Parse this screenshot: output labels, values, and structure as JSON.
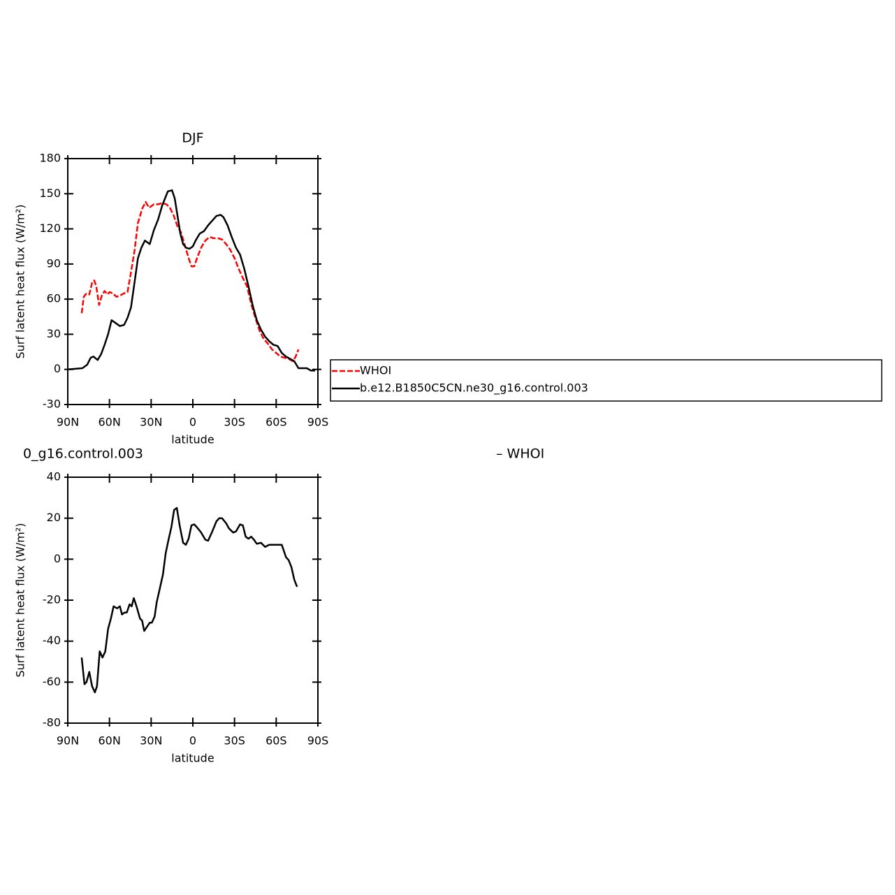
{
  "chart_data": [
    {
      "type": "line",
      "title": "DJF",
      "x_label": "latitude",
      "y_label": "Surf latent heat flux (W/m²)",
      "xlim": [
        90,
        -90
      ],
      "ylim": [
        -30,
        180
      ],
      "xticks": [
        {
          "value": 90,
          "label": "90N"
        },
        {
          "value": 60,
          "label": "60N"
        },
        {
          "value": 30,
          "label": "30N"
        },
        0,
        {
          "value": -30,
          "label": "30S"
        },
        {
          "value": -60,
          "label": "60S"
        },
        {
          "value": -90,
          "label": "90S"
        }
      ],
      "yticks": [
        -30,
        0,
        30,
        60,
        90,
        120,
        150,
        180
      ],
      "legend": "right",
      "series": [
        {
          "name": "WHOI",
          "color": "#ff0000",
          "dashed": true,
          "x": [
            80,
            78.5,
            76.5,
            74.5,
            72.5,
            71,
            69.5,
            67.5,
            65.5,
            63.5,
            61.5,
            60,
            57.5,
            55,
            52.5,
            49.5,
            47,
            44.5,
            42,
            39.5,
            36.5,
            34,
            31.5,
            28,
            25,
            22,
            19,
            16.5,
            14,
            11,
            8.5,
            6,
            3,
            1,
            -1,
            -3,
            -6,
            -9,
            -12,
            -15,
            -18,
            -21,
            -24,
            -27,
            -30,
            -33,
            -36,
            -39,
            -42,
            -45,
            -48,
            -51,
            -54,
            -57,
            -60,
            -63,
            -66,
            -69,
            -72,
            -74,
            -76
          ],
          "values": [
            48,
            62,
            65,
            64,
            74,
            76,
            71,
            55,
            63,
            67,
            64,
            66,
            65,
            62,
            63,
            65,
            66,
            83,
            101,
            125,
            137,
            143,
            138,
            141,
            141,
            142,
            141,
            138,
            132,
            122,
            117,
            107,
            95,
            88,
            88,
            95,
            104,
            110,
            113,
            112,
            112,
            111,
            107,
            102,
            95,
            86,
            78,
            71,
            56,
            44,
            33,
            26,
            22,
            17,
            14,
            11,
            10,
            9,
            7,
            11,
            17
          ]
        },
        {
          "name": "b.e12.B1850C5CN.ne30_g16.control.003",
          "color": "#000000",
          "dashed": false,
          "x": [
            90,
            79.5,
            76,
            73.5,
            71.5,
            68.5,
            66,
            63.5,
            61,
            58.5,
            56,
            52.5,
            49.5,
            47,
            44.5,
            42,
            39.5,
            37,
            34.5,
            31,
            28,
            25,
            22,
            20,
            18,
            15,
            13,
            11,
            9,
            7,
            5,
            2.5,
            0,
            -2,
            -5,
            -8,
            -11,
            -14,
            -17,
            -20,
            -22,
            -25,
            -28,
            -31,
            -34,
            -37,
            -40,
            -43,
            -46,
            -49,
            -52,
            -55,
            -58,
            -61,
            -64,
            -67,
            -70,
            -73,
            -76,
            -79,
            -82,
            -85,
            -88
          ],
          "values": [
            0,
            1,
            4,
            10,
            11,
            8,
            13,
            21,
            30,
            42,
            40,
            37,
            38,
            44,
            53,
            74,
            95,
            104,
            110,
            107,
            119,
            128,
            140,
            146,
            152,
            153,
            146,
            131,
            116,
            107,
            104,
            103,
            105,
            110,
            116,
            118,
            123,
            127,
            131,
            132,
            130,
            123,
            113,
            104,
            98,
            86,
            71,
            55,
            42,
            34,
            28,
            24,
            21,
            20,
            14,
            11,
            9,
            7,
            1,
            1,
            1,
            -1,
            -1
          ]
        }
      ]
    },
    {
      "type": "line",
      "left_string": "0_g16.control.003",
      "right_string": "– WHOI",
      "x_label": "latitude",
      "y_label": "Surf latent heat flux (W/m²)",
      "xlim": [
        90,
        -90
      ],
      "ylim": [
        -80,
        40
      ],
      "xticks": [
        {
          "value": 90,
          "label": "90N"
        },
        {
          "value": 60,
          "label": "60N"
        },
        {
          "value": 30,
          "label": "30N"
        },
        0,
        {
          "value": -30,
          "label": "30S"
        },
        {
          "value": -60,
          "label": "60S"
        },
        {
          "value": -90,
          "label": "90S"
        }
      ],
      "yticks": [
        -80,
        -60,
        -40,
        -20,
        0,
        20,
        40
      ],
      "series": [
        {
          "color": "#000000",
          "dashed": false,
          "x": [
            80,
            78,
            76.5,
            74.5,
            72.5,
            70.5,
            69,
            67,
            65,
            63,
            61,
            59,
            57,
            54.5,
            52.5,
            51,
            49,
            47.5,
            45.5,
            44,
            42.5,
            40.5,
            38,
            36.5,
            35,
            33,
            31,
            29.5,
            27.5,
            26,
            24,
            21.5,
            19.5,
            17.5,
            15.5,
            13.5,
            11.5,
            9.5,
            7,
            5,
            3,
            1,
            -1,
            -3,
            -6,
            -9,
            -11,
            -14,
            -17,
            -19,
            -21,
            -24,
            -26,
            -29,
            -31,
            -34,
            -36,
            -38,
            -40,
            -42,
            -44,
            -46,
            -49,
            -52,
            -55,
            -58,
            -61,
            -64,
            -67,
            -69,
            -71,
            -73,
            -75
          ],
          "values": [
            -48,
            -61,
            -60,
            -55,
            -62,
            -65,
            -62,
            -45,
            -48,
            -45,
            -34,
            -29,
            -23,
            -24,
            -23,
            -27,
            -26,
            -26,
            -22,
            -23,
            -19,
            -23,
            -29,
            -30,
            -35,
            -33,
            -31,
            -31,
            -28,
            -21,
            -15,
            -7.5,
            3,
            9.5,
            15.5,
            24,
            25,
            16.5,
            8,
            7,
            10,
            16.5,
            17,
            15.5,
            13,
            9.5,
            9,
            13.5,
            18.5,
            20,
            20,
            17.5,
            15,
            13,
            13.5,
            17,
            16.5,
            11,
            10,
            11,
            9.5,
            7.5,
            8,
            6,
            7,
            7,
            7,
            7,
            1,
            -0.5,
            -4,
            -10,
            -13.5
          ]
        }
      ]
    }
  ]
}
